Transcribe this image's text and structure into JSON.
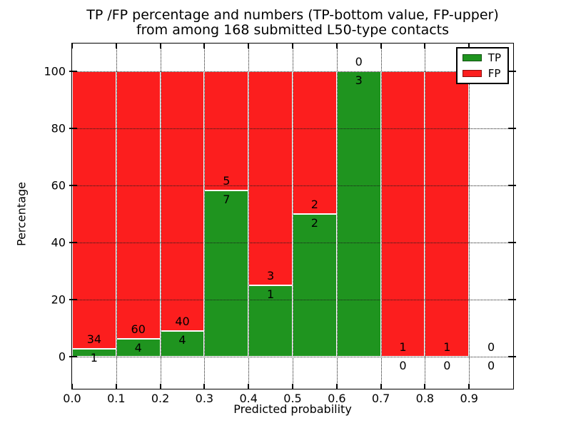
{
  "title": {
    "line1": "TP /FP percentage and numbers (TP-bottom value, FP-upper)",
    "line2": "from among 168 submitted L50-type contacts"
  },
  "axes": {
    "xlabel": "Predicted probability",
    "ylabel": "Percentage"
  },
  "chart_data": {
    "type": "bar",
    "stacked": true,
    "normalized_to_percent": true,
    "title": "TP /FP percentage and numbers (TP-bottom value, FP-upper) from among 168 submitted L50-type contacts",
    "xlabel": "Predicted probability",
    "ylabel": "Percentage",
    "total_submitted": 168,
    "bin_edges": [
      0.0,
      0.1,
      0.2,
      0.3,
      0.4,
      0.5,
      0.6,
      0.7,
      0.8,
      0.9,
      1.0
    ],
    "x_tick_labels": [
      "0.0",
      "0.1",
      "0.2",
      "0.3",
      "0.4",
      "0.5",
      "0.6",
      "0.7",
      "0.8",
      "0.9"
    ],
    "y_ticks": [
      0,
      20,
      40,
      60,
      80,
      100
    ],
    "xlim": [
      0.0,
      1.0
    ],
    "ylim": [
      -11.25,
      109.75
    ],
    "grid": true,
    "series": [
      {
        "name": "TP",
        "color": "#1f941f",
        "counts": [
          1,
          4,
          4,
          7,
          1,
          2,
          3,
          0,
          0,
          0
        ],
        "count_label_position": "below boundary"
      },
      {
        "name": "FP",
        "color": "#fc1e1e",
        "counts": [
          34,
          60,
          40,
          5,
          3,
          2,
          0,
          1,
          1,
          0
        ],
        "count_label_position": "above boundary"
      }
    ],
    "tp_percent_by_bin": [
      2.86,
      6.25,
      9.09,
      58.33,
      25.0,
      50.0,
      100.0,
      0.0,
      0.0,
      0.0
    ],
    "legend": {
      "position": "upper right",
      "labels": [
        "TP",
        "FP"
      ]
    }
  }
}
